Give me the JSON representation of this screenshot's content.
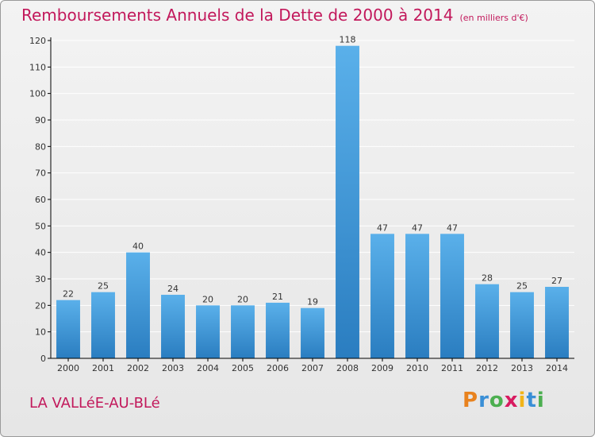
{
  "chart_data": {
    "type": "bar",
    "title": "Remboursements Annuels de la Dette de 2000 à 2014",
    "unit": "(en milliers d'€)",
    "categories": [
      "2000",
      "2001",
      "2002",
      "2003",
      "2004",
      "2005",
      "2006",
      "2007",
      "2008",
      "2009",
      "2010",
      "2011",
      "2012",
      "2013",
      "2014"
    ],
    "values": [
      22,
      25,
      40,
      24,
      20,
      20,
      21,
      19,
      118,
      47,
      47,
      47,
      28,
      25,
      27
    ],
    "value_labels": [
      "22",
      "25",
      "40",
      "24",
      "20",
      "20",
      "21",
      "19",
      "118",
      "47",
      "47",
      "47",
      "28",
      "25",
      "27"
    ],
    "ylim": [
      0,
      120
    ],
    "yticks": [
      0,
      10,
      20,
      30,
      40,
      50,
      60,
      70,
      80,
      90,
      100,
      110,
      120
    ],
    "ytick_labels": [
      "0",
      "10",
      "20",
      "30",
      "40",
      "50",
      "60",
      "70",
      "80",
      "90",
      "100",
      "110",
      "120"
    ],
    "grid": true,
    "xlabel": "",
    "ylabel": ""
  },
  "commune": "LA VALLéE-AU-BLé",
  "brand": {
    "letters": [
      "P",
      "r",
      "o",
      "x",
      "i",
      "t",
      "i"
    ],
    "colors": [
      "#e8821e",
      "#3a8fd6",
      "#4caf50",
      "#d81b60",
      "#f2b418",
      "#3a8fd6",
      "#4caf50"
    ]
  },
  "colors": {
    "title": "#c2185b",
    "bar_top": "#5ab0ea",
    "bar_bottom": "#2a7dc0",
    "grid": "#ffffff",
    "axis": "#000000",
    "text": "#333333"
  }
}
